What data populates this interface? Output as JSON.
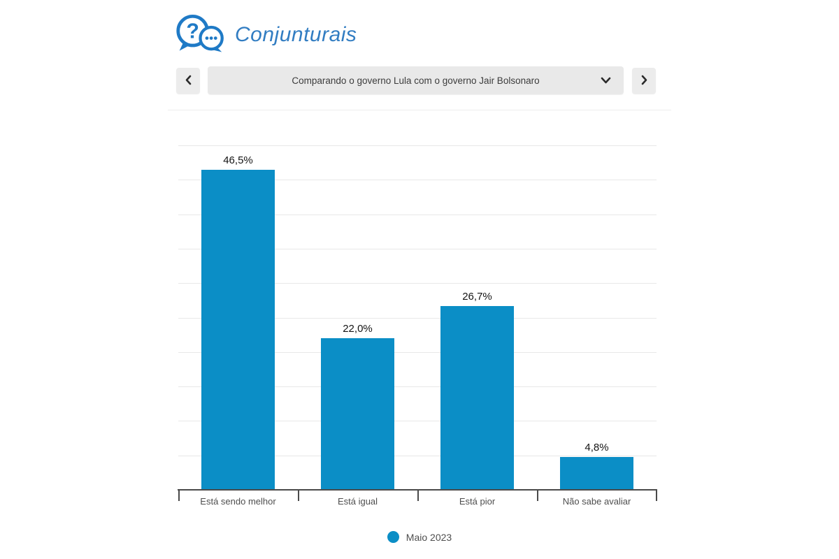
{
  "brand": {
    "name": "Conjunturais",
    "accent_color": "#327dc2",
    "icon": "speech-bubbles-question-icon"
  },
  "carousel": {
    "selected_option": "Comparando o governo Lula com o governo Jair Bolsonaro",
    "prev_icon": "chevron-left-icon",
    "next_icon": "chevron-right-icon",
    "dropdown_icon": "chevron-down-icon"
  },
  "chart_data": {
    "type": "bar",
    "title": "Comparando o governo Lula com o governo Jair Bolsonaro",
    "categories": [
      "Está sendo melhor",
      "Está igual",
      "Está pior",
      "Não sabe avaliar"
    ],
    "series": [
      {
        "name": "Maio 2023",
        "values": [
          46.5,
          22.0,
          26.7,
          4.8
        ]
      }
    ],
    "value_labels": [
      "46,5%",
      "22,0%",
      "26,7%",
      "4,8%"
    ],
    "xlabel": "",
    "ylabel": "",
    "ylim": [
      0,
      50
    ],
    "gridline_step": 5,
    "grid": true,
    "y_axis_labels_visible": false,
    "bar_color": "#0b8ec6",
    "legend_position": "bottom"
  },
  "legend": {
    "items": [
      {
        "label": "Maio 2023",
        "color": "#0b8ec6",
        "marker": "circle"
      }
    ]
  }
}
